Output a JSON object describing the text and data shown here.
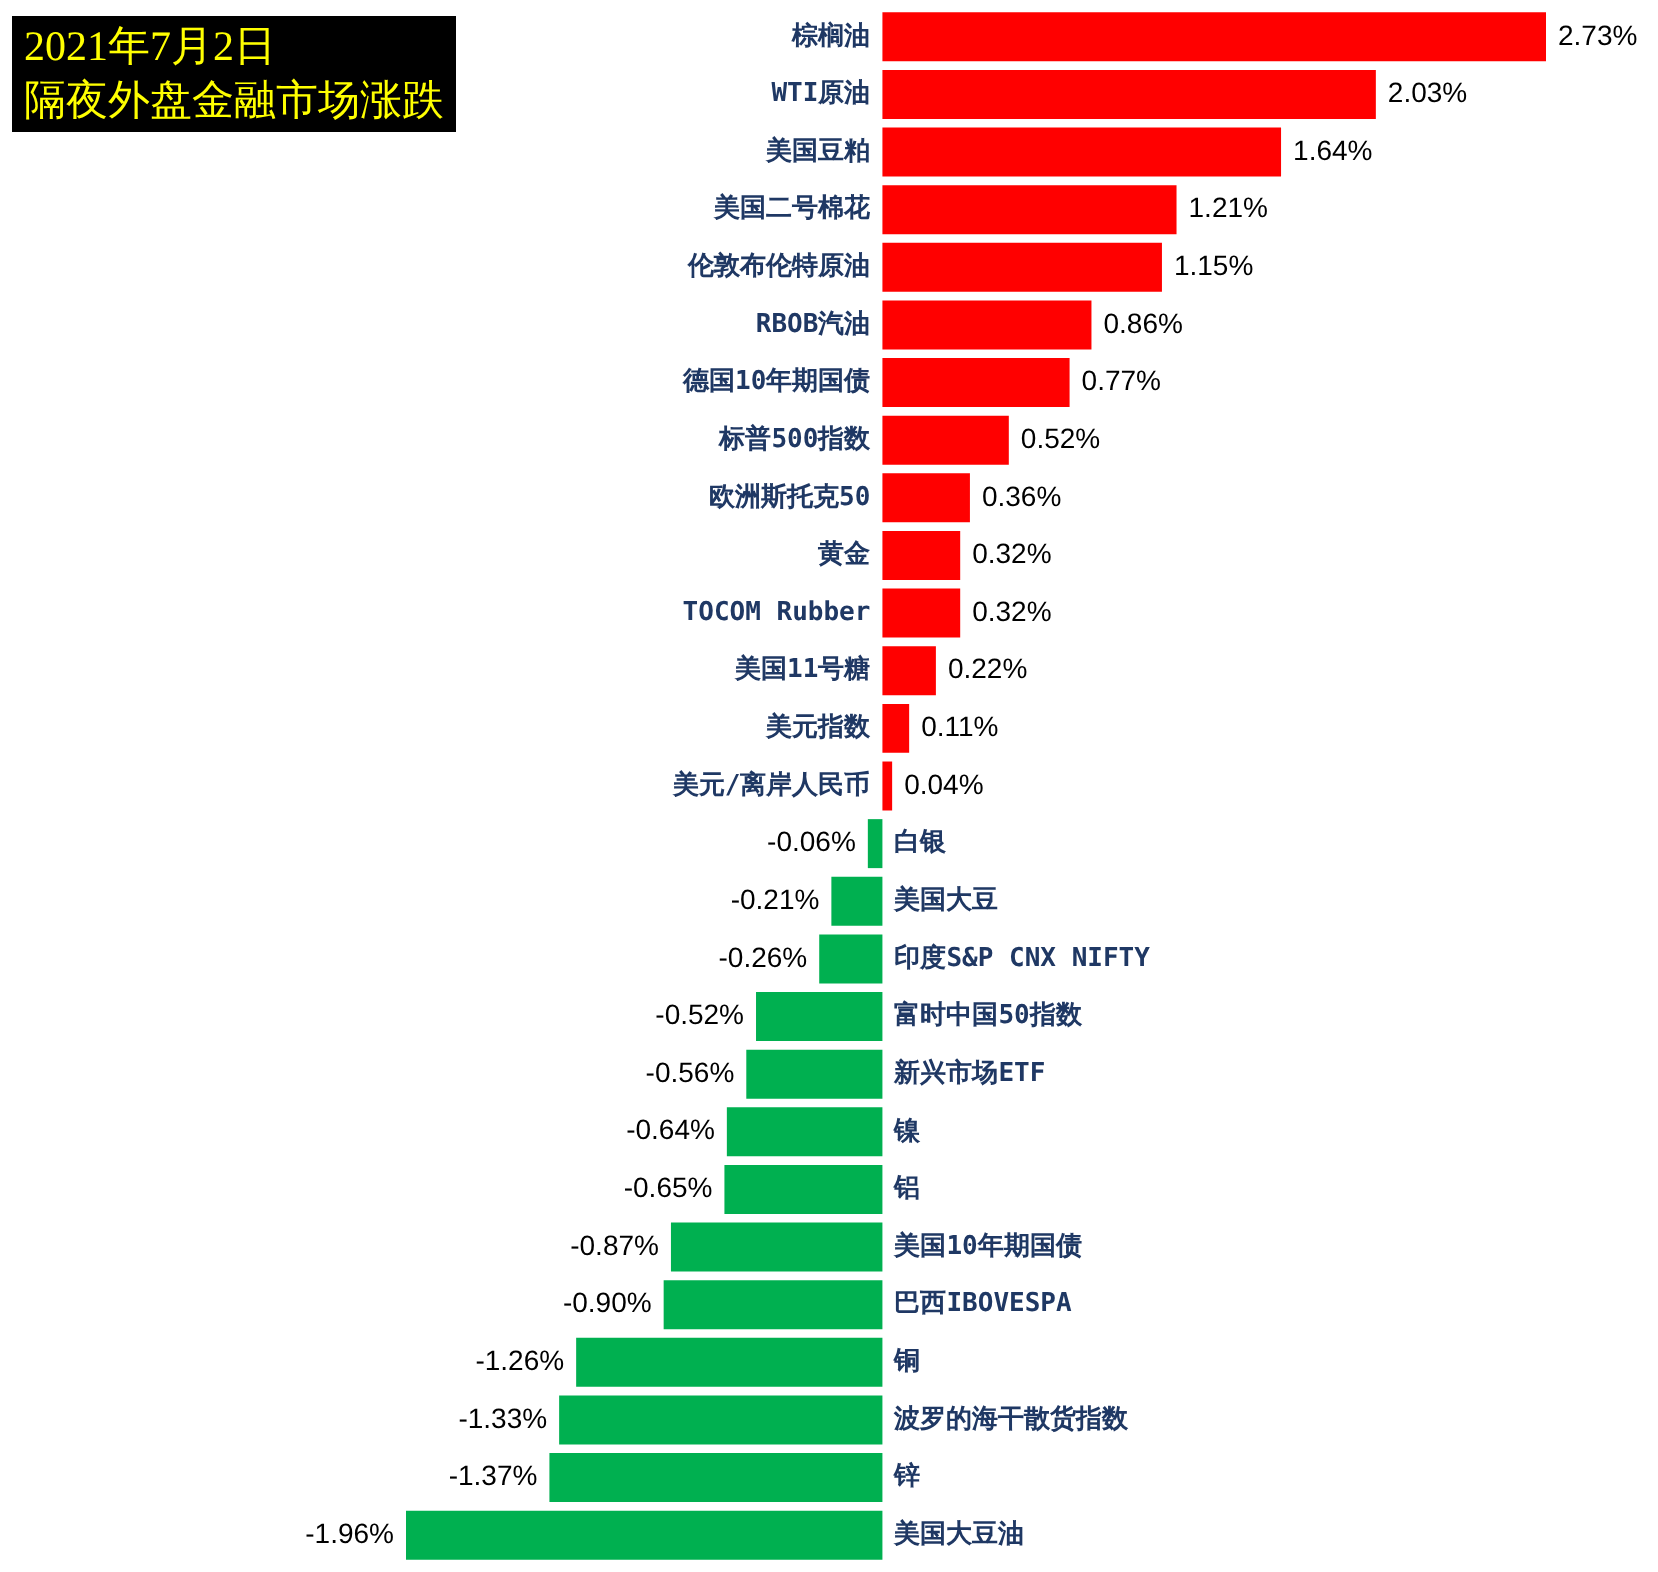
{
  "chart_data": {
    "type": "bar",
    "orientation": "horizontal",
    "title": "2021年7月2日",
    "subtitle": "隔夜外盘金融市场涨跌",
    "categories": [
      "棕榈油",
      "WTI原油",
      "美国豆粕",
      "美国二号棉花",
      "伦敦布伦特原油",
      "RBOB汽油",
      "德国10年期国债",
      "标普500指数",
      "欧洲斯托克50",
      "黄金",
      "TOCOM Rubber",
      "美国11号糖",
      "美元指数",
      "美元/离岸人民币",
      "白银",
      "美国大豆",
      "印度S&P CNX NIFTY",
      "富时中国50指数",
      "新兴市场ETF",
      "镍",
      "铝",
      "美国10年期国债",
      "巴西IBOVESPA",
      "铜",
      "波罗的海干散货指数",
      "锌",
      "美国大豆油"
    ],
    "values": [
      2.73,
      2.03,
      1.64,
      1.21,
      1.15,
      0.86,
      0.77,
      0.52,
      0.36,
      0.32,
      0.32,
      0.22,
      0.11,
      0.04,
      -0.06,
      -0.21,
      -0.26,
      -0.52,
      -0.56,
      -0.64,
      -0.65,
      -0.87,
      -0.9,
      -1.26,
      -1.33,
      -1.37,
      -1.96
    ],
    "value_labels": [
      "2.73%",
      "2.03%",
      "1.64%",
      "1.21%",
      "1.15%",
      "0.86%",
      "0.77%",
      "0.52%",
      "0.36%",
      "0.32%",
      "0.32%",
      "0.22%",
      "0.11%",
      "0.04%",
      "-0.06%",
      "-0.21%",
      "-0.26%",
      "-0.52%",
      "-0.56%",
      "-0.64%",
      "-0.65%",
      "-0.87%",
      "-0.90%",
      "-1.26%",
      "-1.33%",
      "-1.37%",
      "-1.96%"
    ],
    "colors": [
      "#ff0000",
      "#ff0000",
      "#ff0000",
      "#ff0000",
      "#ff0000",
      "#ff0000",
      "#ff0000",
      "#ff0000",
      "#ff0000",
      "#ff0000",
      "#ff0000",
      "#ff0000",
      "#ff0000",
      "#ff0000",
      "#00b050",
      "#00b050",
      "#00b050",
      "#00b050",
      "#00b050",
      "#00b050",
      "#00b050",
      "#00b050",
      "#00b050",
      "#00b050",
      "#00b050",
      "#00b050",
      "#00b050"
    ],
    "tick_labels": false,
    "legend": false
  }
}
